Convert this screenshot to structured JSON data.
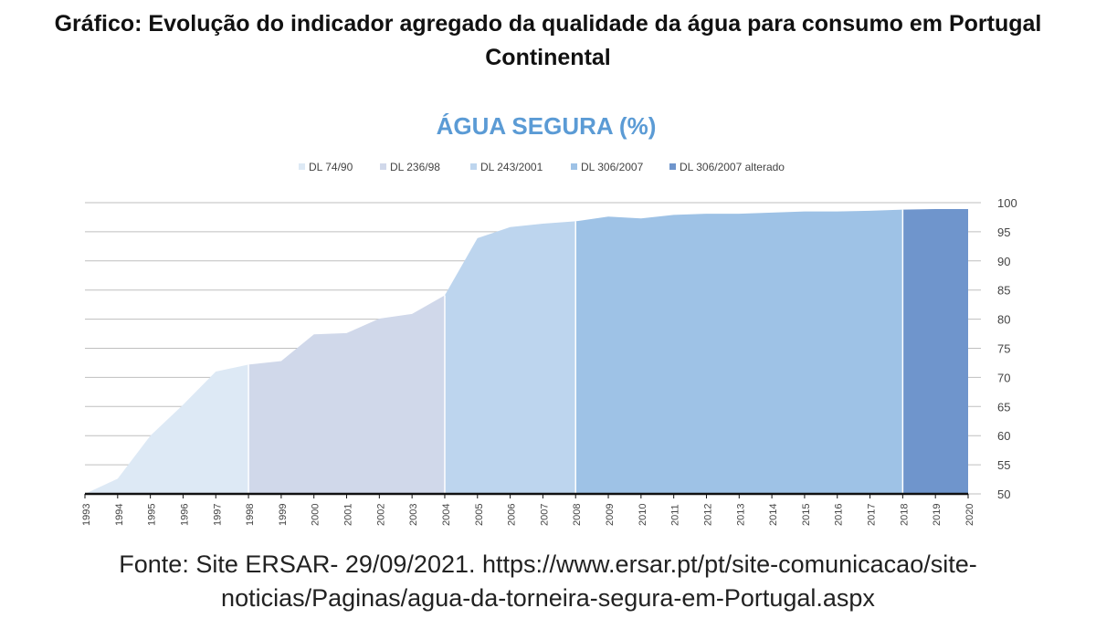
{
  "header": {
    "title": "Gráfico: Evolução do indicador agregado da qualidade da água para consumo em Portugal Continental"
  },
  "chart_data": {
    "type": "area",
    "title": "ÁGUA SEGURA (%)",
    "xlabel": "",
    "ylabel": "",
    "ylim": [
      50,
      100
    ],
    "yticks": [
      "50",
      "55",
      "60",
      "65",
      "70",
      "75",
      "80",
      "85",
      "90",
      "95",
      "100"
    ],
    "grid": true,
    "legend_position": "top",
    "categories": [
      "1993",
      "1994",
      "1995",
      "1996",
      "1997",
      "1998",
      "1999",
      "2000",
      "2001",
      "2002",
      "2003",
      "2004",
      "2005",
      "2006",
      "2007",
      "2008",
      "2009",
      "2010",
      "2011",
      "2012",
      "2013",
      "2014",
      "2015",
      "2016",
      "2017",
      "2018",
      "2019",
      "2020"
    ],
    "values": [
      50.0,
      52.6,
      60.0,
      65.3,
      71.0,
      72.2,
      72.8,
      77.4,
      77.6,
      80.1,
      80.9,
      84.1,
      93.9,
      95.8,
      96.4,
      96.8,
      97.6,
      97.3,
      97.9,
      98.1,
      98.1,
      98.3,
      98.5,
      98.5,
      98.6,
      98.8,
      98.9,
      98.9
    ],
    "series": [
      {
        "name": "DL 74/90",
        "color": "#dde9f5",
        "start": "1993",
        "end": "1998"
      },
      {
        "name": "DL 236/98",
        "color": "#d0d8ea",
        "start": "1998",
        "end": "2004"
      },
      {
        "name": "DL 243/2001",
        "color": "#bdd5ee",
        "start": "2004",
        "end": "2008"
      },
      {
        "name": "DL 306/2007",
        "color": "#9ec2e6",
        "start": "2008",
        "end": "2018"
      },
      {
        "name": "DL 306/2007 alterado",
        "color": "#6f95cc",
        "start": "2018",
        "end": "2020"
      }
    ],
    "title_color": "#5b9bd5"
  },
  "footer": {
    "source_line1": "Fonte: Site ERSAR- 29/09/2021. https://www.ersar.pt/pt/site-comunicacao/site-",
    "source_line2": "noticias/Paginas/agua-da-torneira-segura-em-Portugal.aspx"
  }
}
